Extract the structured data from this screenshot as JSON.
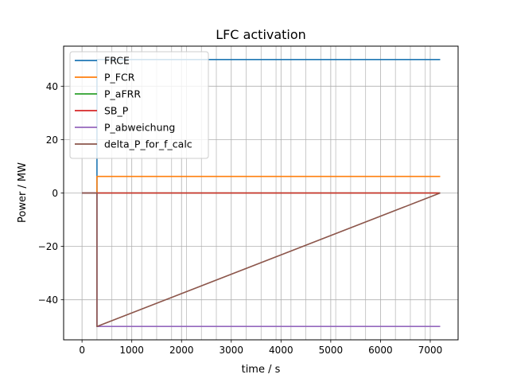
{
  "chart_data": {
    "type": "line",
    "title": "LFC activation",
    "xlabel": "time / s",
    "ylabel": "Power / MW",
    "xlim": [
      -370,
      7560
    ],
    "ylim": [
      -55,
      55
    ],
    "xticks": [
      0,
      1000,
      2000,
      3000,
      4000,
      5000,
      6000,
      7000
    ],
    "yticks": [
      -40,
      -20,
      0,
      20,
      40
    ],
    "ytick_labels": [
      "−40",
      "−20",
      "0",
      "20",
      "40"
    ],
    "grid": true,
    "minor_x_gridlines": [
      300,
      600,
      900,
      1200,
      1500,
      1800,
      2100,
      2400,
      2700,
      3300,
      3600,
      3900,
      4200,
      4500,
      4800,
      5100,
      5400,
      5700,
      6300,
      6600,
      6900
    ],
    "legend_position": "top-left",
    "series": [
      {
        "name": "FRCE",
        "color": "#1f77b4",
        "x": [
          0,
          300,
          300,
          7200
        ],
        "y": [
          0,
          0,
          50,
          50
        ]
      },
      {
        "name": "P_FCR",
        "color": "#ff7f0e",
        "x": [
          0,
          300,
          300,
          7200
        ],
        "y": [
          0,
          0,
          6.2,
          6.2
        ]
      },
      {
        "name": "P_aFRR",
        "color": "#2ca02c",
        "x": [
          0,
          7200
        ],
        "y": [
          0,
          0
        ]
      },
      {
        "name": "SB_P",
        "color": "#d62728",
        "x": [
          0,
          7200
        ],
        "y": [
          0,
          0
        ]
      },
      {
        "name": "P_abweichung",
        "color": "#9467bd",
        "x": [
          0,
          300,
          300,
          7200
        ],
        "y": [
          0,
          0,
          -50,
          -50
        ]
      },
      {
        "name": "delta_P_for_f_calc",
        "color": "#8c564b",
        "x": [
          0,
          300,
          300,
          7200
        ],
        "y": [
          0,
          0,
          -50,
          0
        ]
      }
    ]
  }
}
